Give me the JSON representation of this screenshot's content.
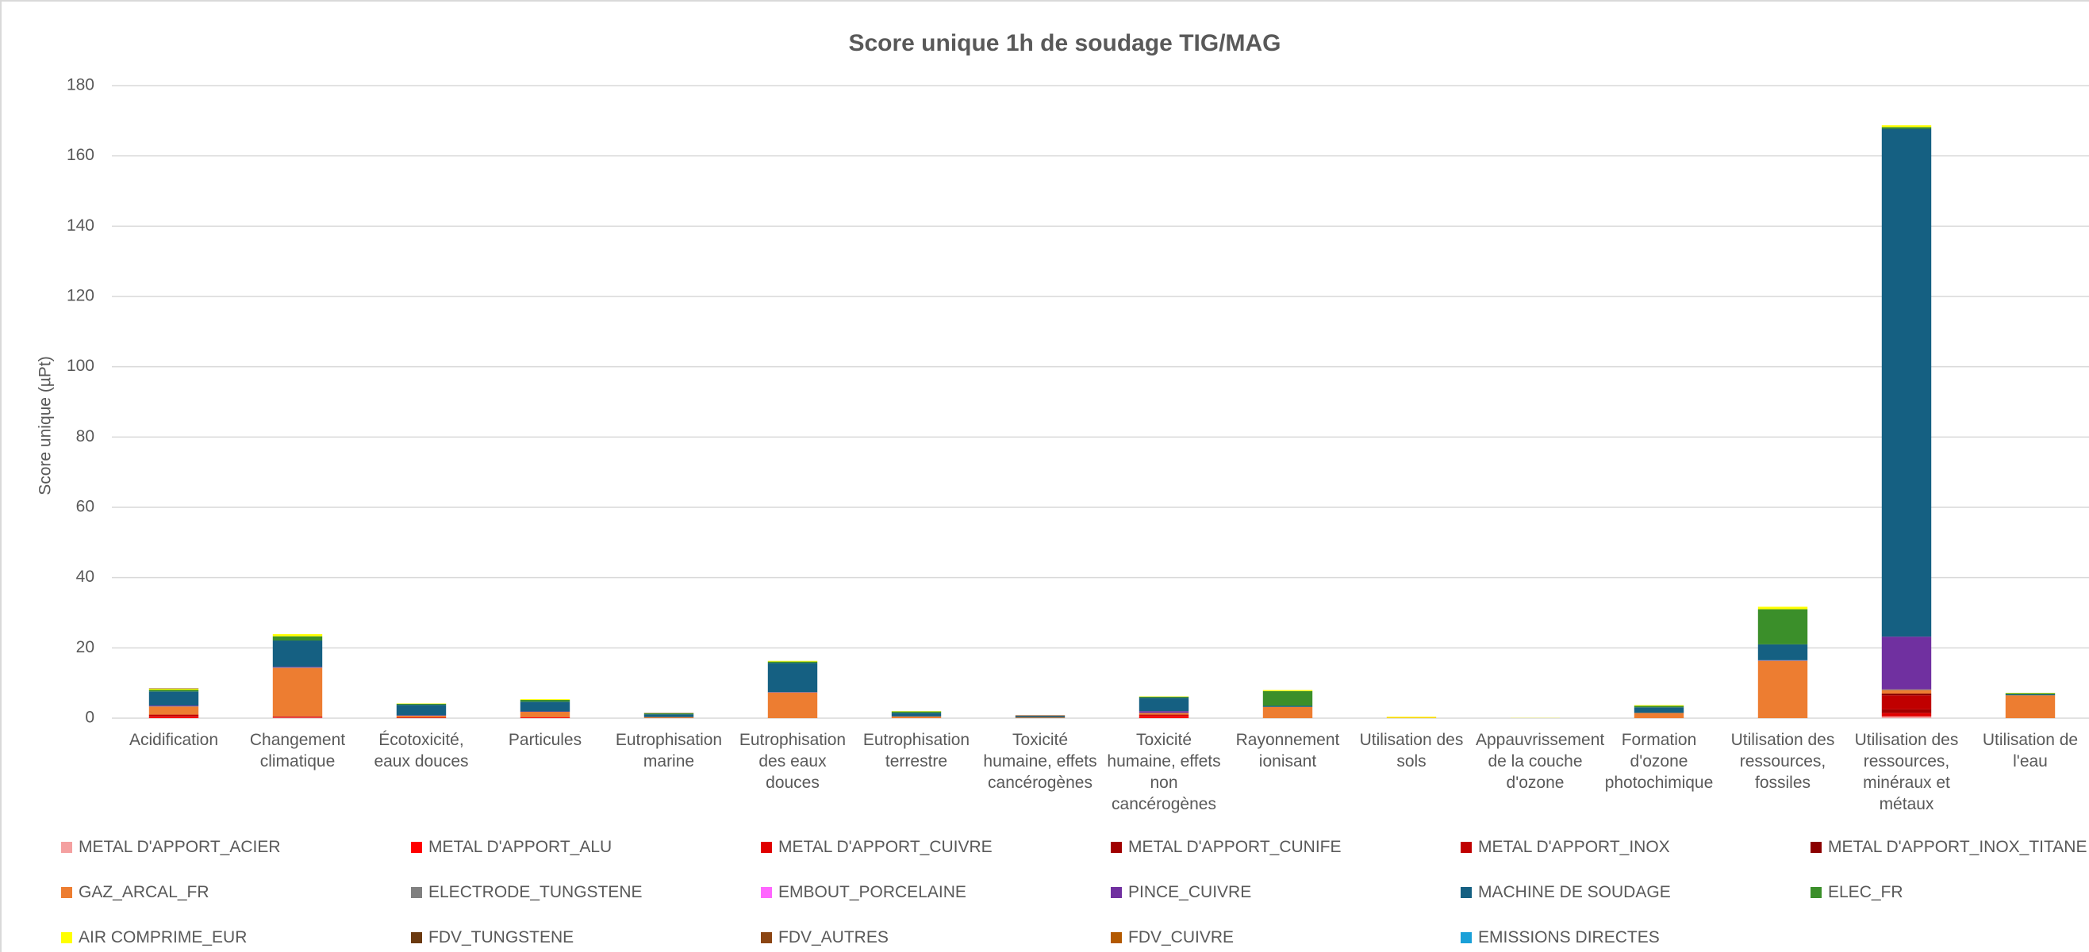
{
  "chart_data": {
    "type": "stacked_bar",
    "title": "Score unique 1h de soudage TIG/MAG",
    "y_label": "Score unique (µPt)",
    "categories": [
      "Acidification",
      "Changement climatique",
      "Écotoxicité, eaux douces",
      "Particules",
      "Eutrophisation marine",
      "Eutrophisation des eaux douces",
      "Eutrophisation terrestre",
      "Toxicité humaine, effets cancérogènes",
      "Toxicité humaine, effets non cancérogènes",
      "Rayonnement ionisant",
      "Utilisation des sols",
      "Appauvrissement de la couche d'ozone",
      "Formation d'ozone photochimique",
      "Utilisation des ressources, fossiles",
      "Utilisation des ressources, minéraux et métaux",
      "Utilisation de l'eau"
    ],
    "ylim": [
      0,
      180
    ],
    "yticks": [
      0,
      20,
      40,
      60,
      80,
      100,
      120,
      140,
      160,
      180
    ],
    "grid": true,
    "series": [
      {
        "name": "METAL D'APPORT_ACIER",
        "color": "#f4a0a0",
        "values": [
          0,
          0.1,
          0,
          0,
          0,
          0,
          0,
          0,
          0,
          0,
          0,
          0,
          0,
          0,
          0.5,
          0
        ]
      },
      {
        "name": "METAL D'APPORT_ALU",
        "color": "#ff0000",
        "values": [
          0.3,
          0.1,
          0,
          0.2,
          0,
          0,
          0,
          0,
          0.5,
          0,
          0,
          0,
          0,
          0,
          0,
          0
        ]
      },
      {
        "name": "METAL D'APPORT_CUIVRE",
        "color": "#e00000",
        "values": [
          0.2,
          0.1,
          0.1,
          0.1,
          0,
          0,
          0,
          0,
          0.3,
          0,
          0,
          0,
          0,
          0,
          1,
          0
        ]
      },
      {
        "name": "METAL D'APPORT_CUNIFE",
        "color": "#a00000",
        "values": [
          0,
          0,
          0,
          0,
          0,
          0,
          0,
          0,
          0,
          0,
          0,
          0,
          0,
          0,
          1,
          0
        ]
      },
      {
        "name": "METAL D'APPORT_INOX",
        "color": "#c00000",
        "values": [
          0.5,
          0.2,
          0.1,
          0,
          0,
          0,
          0,
          0,
          0.2,
          0,
          0,
          0,
          0,
          0,
          4,
          0
        ]
      },
      {
        "name": "METAL D'APPORT_INOX_TITANE",
        "color": "#8b0000",
        "values": [
          0,
          0,
          0,
          0,
          0,
          0,
          0,
          0,
          0,
          0,
          0,
          0,
          0,
          0,
          0.5,
          0
        ]
      },
      {
        "name": "GAZ_ARCAL_FR",
        "color": "#ed7d31",
        "values": [
          2.3,
          13.8,
          0.5,
          1.5,
          0.3,
          7.3,
          0.5,
          0.2,
          0.5,
          3.2,
          0.1,
          0,
          1.5,
          16.3,
          1,
          6.5
        ]
      },
      {
        "name": "ELECTRODE_TUNGSTENE",
        "color": "#808080",
        "values": [
          0.1,
          0.1,
          0,
          0,
          0,
          0,
          0,
          0,
          0,
          0,
          0,
          0,
          0,
          0.1,
          0.2,
          0
        ]
      },
      {
        "name": "EMBOUT_PORCELAINE",
        "color": "#ff66ff",
        "values": [
          0,
          0,
          0,
          0,
          0,
          0,
          0,
          0,
          0,
          0,
          0,
          0,
          0,
          0,
          0,
          0
        ]
      },
      {
        "name": "PINCE_CUIVRE",
        "color": "#7030a0",
        "values": [
          0.2,
          0.2,
          0.1,
          0.1,
          0,
          0.1,
          0,
          0,
          0.5,
          0,
          0,
          0,
          0,
          0.1,
          15,
          0
        ]
      },
      {
        "name": "MACHINE DE SOUDAGE",
        "color": "#156082",
        "values": [
          4,
          7.5,
          3,
          2.8,
          0.8,
          8.3,
          1,
          0.4,
          3.8,
          0.3,
          0,
          0,
          1.6,
          4.5,
          144.5,
          0.3
        ]
      },
      {
        "name": "ELEC_FR",
        "color": "#3b8f2a",
        "values": [
          0.5,
          1.2,
          0.3,
          0.5,
          0.3,
          0.4,
          0.4,
          0,
          0.3,
          4.2,
          0,
          0,
          0.4,
          10,
          0.5,
          0.3
        ]
      },
      {
        "name": "AIR COMPRIME_EUR",
        "color": "#ffff00",
        "values": [
          0.3,
          0.6,
          0.1,
          0.2,
          0,
          0.2,
          0.1,
          0,
          0.1,
          0.3,
          0.3,
          0.05,
          0.2,
          0.7,
          0.5,
          0.1
        ]
      },
      {
        "name": "FDV_TUNGSTENE",
        "color": "#6b3a10",
        "values": [
          0,
          0,
          0,
          0,
          0,
          0,
          0,
          0,
          0,
          0,
          0,
          0,
          0,
          0,
          0,
          0
        ]
      },
      {
        "name": "FDV_AUTRES",
        "color": "#8b4513",
        "values": [
          0.1,
          0,
          0,
          0,
          0.1,
          0,
          0,
          0.2,
          0,
          0,
          0,
          0,
          0,
          0,
          0,
          0
        ]
      },
      {
        "name": "FDV_CUIVRE",
        "color": "#b35900",
        "values": [
          0,
          0,
          0,
          0,
          0,
          0,
          0,
          0,
          0,
          0,
          0,
          0,
          0,
          0,
          0,
          0
        ]
      },
      {
        "name": "EMISSIONS DIRECTES",
        "color": "#1aa0d8",
        "values": [
          0,
          0,
          0,
          0,
          0,
          0,
          0,
          0,
          0,
          0,
          0,
          0,
          0,
          0,
          0,
          0
        ]
      }
    ]
  }
}
